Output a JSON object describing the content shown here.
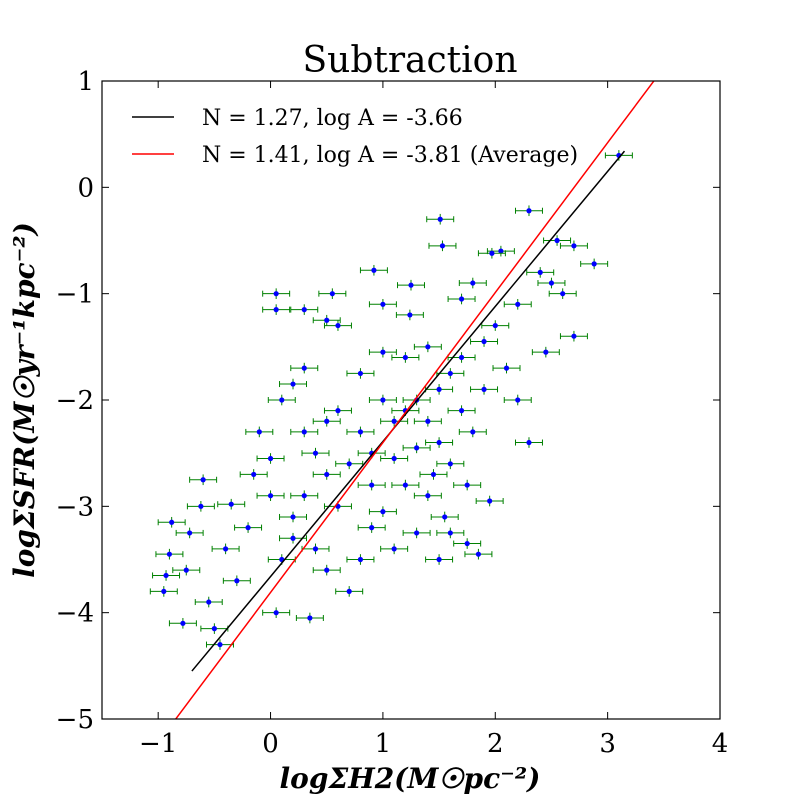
{
  "chart_data": {
    "type": "scatter",
    "title": "Subtraction",
    "xlabel": "logΣH2(M☉pc⁻²)",
    "ylabel": "logΣSFR(M☉yr⁻¹kpc⁻²)",
    "xlim": [
      -1.5,
      4
    ],
    "ylim": [
      -5,
      1
    ],
    "xticks": [
      -1,
      0,
      1,
      2,
      3,
      4
    ],
    "yticks": [
      -5,
      -4,
      -3,
      -2,
      -1,
      0,
      1
    ],
    "xtick_labels": [
      "−1",
      "0",
      "1",
      "2",
      "3",
      "4"
    ],
    "ytick_labels": [
      "−5",
      "−4",
      "−3",
      "−2",
      "−1",
      "0",
      "1"
    ],
    "legend_position": "top-left",
    "fits": [
      {
        "name": "N = 1.27, log A = -3.66",
        "slope": 1.27,
        "intercept": -3.66,
        "x_range": [
          -0.7,
          3.15
        ],
        "color": "#000000"
      },
      {
        "name": "N = 1.41, log A = -3.81 (Average)",
        "slope": 1.41,
        "intercept": -3.81,
        "x_range": [
          -0.9,
          3.45
        ],
        "color": "#ff0000"
      }
    ],
    "series": [
      {
        "name": "data points",
        "marker_color": "#0000ff",
        "error_color": "#008000",
        "x_error": 0.12,
        "y_error": 0.05,
        "points": [
          [
            3.1,
            0.3
          ],
          [
            2.3,
            -0.22
          ],
          [
            2.05,
            -0.6
          ],
          [
            2.55,
            -0.5
          ],
          [
            2.7,
            -0.55
          ],
          [
            2.88,
            -0.72
          ],
          [
            1.51,
            -0.3
          ],
          [
            1.53,
            -0.55
          ],
          [
            1.97,
            -0.62
          ],
          [
            0.92,
            -0.78
          ],
          [
            1.25,
            -0.92
          ],
          [
            1.0,
            -1.1
          ],
          [
            1.24,
            -1.2
          ],
          [
            0.55,
            -1.0
          ],
          [
            0.05,
            -1.0
          ],
          [
            0.05,
            -1.15
          ],
          [
            0.3,
            -1.15
          ],
          [
            0.5,
            -1.25
          ],
          [
            0.6,
            -1.3
          ],
          [
            2.4,
            -0.8
          ],
          [
            2.5,
            -0.9
          ],
          [
            2.6,
            -1.0
          ],
          [
            2.2,
            -1.1
          ],
          [
            1.8,
            -0.9
          ],
          [
            1.7,
            -1.05
          ],
          [
            2.7,
            -1.4
          ],
          [
            2.45,
            -1.55
          ],
          [
            2.0,
            -1.3
          ],
          [
            1.9,
            -1.45
          ],
          [
            -0.88,
            -3.15
          ],
          [
            -0.9,
            -3.45
          ],
          [
            -0.93,
            -3.65
          ],
          [
            -0.95,
            -3.8
          ],
          [
            -0.78,
            -4.1
          ],
          [
            -0.72,
            -3.25
          ],
          [
            -0.75,
            -3.6
          ],
          [
            -0.55,
            -3.9
          ],
          [
            -0.5,
            -4.15
          ],
          [
            -0.45,
            -4.3
          ],
          [
            -0.6,
            -2.75
          ],
          [
            -0.62,
            -3.0
          ],
          [
            -0.35,
            -2.98
          ],
          [
            -0.4,
            -3.4
          ],
          [
            -0.3,
            -3.7
          ],
          [
            0.1,
            -2.0
          ],
          [
            0.2,
            -1.85
          ],
          [
            0.3,
            -1.7
          ],
          [
            -0.1,
            -2.3
          ],
          [
            0.0,
            -2.55
          ],
          [
            -0.15,
            -2.7
          ],
          [
            0.05,
            -4.0
          ],
          [
            0.2,
            -3.3
          ],
          [
            0.35,
            -4.05
          ],
          [
            0.5,
            -3.6
          ],
          [
            0.7,
            -3.8
          ],
          [
            0.9,
            -3.2
          ],
          [
            1.0,
            -3.05
          ],
          [
            1.2,
            -2.8
          ],
          [
            1.45,
            -2.7
          ],
          [
            1.75,
            -2.8
          ],
          [
            1.95,
            -2.95
          ],
          [
            1.3,
            -3.25
          ],
          [
            1.55,
            -3.1
          ],
          [
            1.6,
            -3.25
          ],
          [
            1.75,
            -3.35
          ],
          [
            1.85,
            -3.45
          ],
          [
            1.5,
            -3.5
          ],
          [
            1.1,
            -3.4
          ],
          [
            0.6,
            -2.1
          ],
          [
            0.8,
            -2.3
          ],
          [
            1.0,
            -2.0
          ],
          [
            1.2,
            -2.1
          ],
          [
            1.4,
            -2.2
          ],
          [
            0.7,
            -2.6
          ],
          [
            0.9,
            -2.8
          ],
          [
            1.1,
            -2.55
          ],
          [
            1.3,
            -2.45
          ],
          [
            1.5,
            -1.9
          ],
          [
            1.6,
            -1.75
          ],
          [
            1.7,
            -1.6
          ],
          [
            1.4,
            -1.5
          ],
          [
            1.2,
            -1.6
          ],
          [
            1.0,
            -1.55
          ],
          [
            0.8,
            -1.75
          ],
          [
            1.9,
            -1.9
          ],
          [
            2.1,
            -1.7
          ],
          [
            2.2,
            -2.0
          ],
          [
            2.3,
            -2.4
          ],
          [
            0.4,
            -2.5
          ],
          [
            0.3,
            -2.9
          ],
          [
            0.2,
            -3.1
          ],
          [
            0.6,
            -3.0
          ],
          [
            0.5,
            -2.7
          ],
          [
            0.0,
            -2.9
          ],
          [
            -0.2,
            -3.2
          ],
          [
            0.1,
            -3.5
          ],
          [
            0.4,
            -3.4
          ],
          [
            0.8,
            -3.5
          ],
          [
            0.3,
            -2.3
          ],
          [
            0.5,
            -2.2
          ],
          [
            0.9,
            -2.5
          ],
          [
            1.1,
            -2.2
          ],
          [
            1.3,
            -2.0
          ],
          [
            1.5,
            -2.4
          ],
          [
            1.7,
            -2.1
          ],
          [
            1.8,
            -2.3
          ],
          [
            1.6,
            -2.6
          ],
          [
            1.4,
            -2.9
          ]
        ]
      }
    ]
  }
}
